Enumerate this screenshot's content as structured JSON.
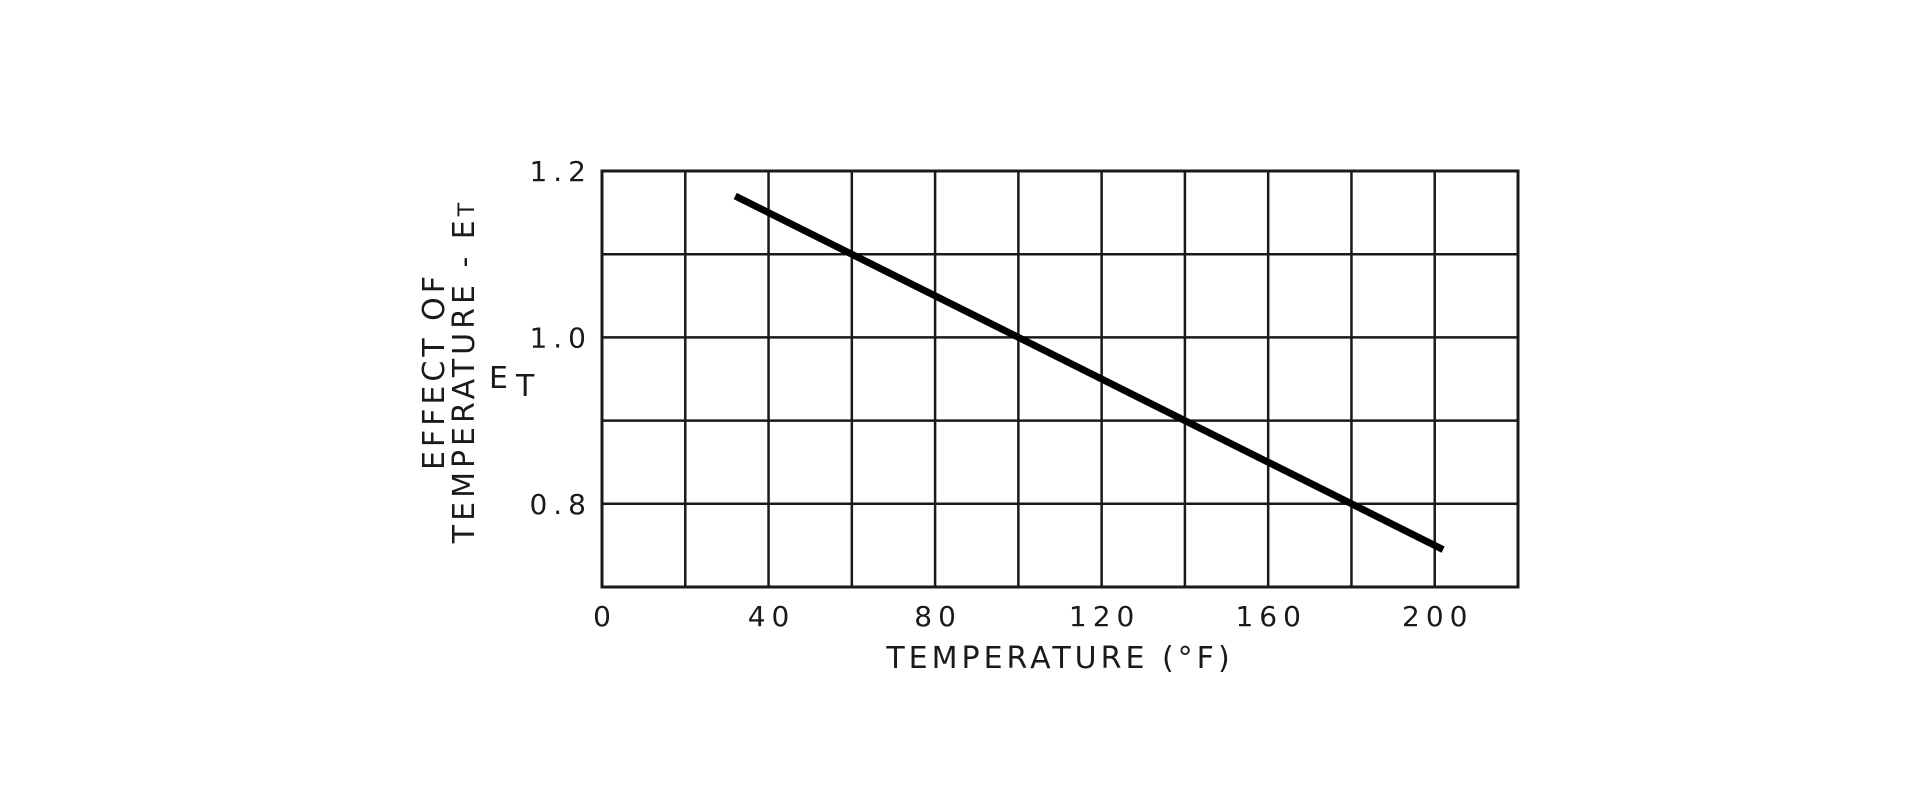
{
  "chart_data": {
    "type": "line",
    "title": "",
    "xlabel": "TEMPERATURE (°F)",
    "ylabel_line1": "EFFECT OF",
    "ylabel_line2": "TEMPERATURE - E",
    "ylabel_sub": "T",
    "ylabel_symbol": "E",
    "ylabel_symbol_sub": "T",
    "xlim": [
      0,
      220
    ],
    "ylim": [
      0.7,
      1.2
    ],
    "x_ticks": [
      {
        "value": 0,
        "label": "0"
      },
      {
        "value": 40,
        "label": "40"
      },
      {
        "value": 80,
        "label": "80"
      },
      {
        "value": 120,
        "label": "120"
      },
      {
        "value": 160,
        "label": "160"
      },
      {
        "value": 200,
        "label": "200"
      }
    ],
    "y_ticks": [
      {
        "value": 1.2,
        "label": "1.2"
      },
      {
        "value": 1.0,
        "label": "1.0"
      },
      {
        "value": 0.8,
        "label": "0.8"
      }
    ],
    "x_grid_step": 20,
    "y_grid_step": 0.1,
    "grid": true,
    "legend": null,
    "series": [
      {
        "name": "E_T",
        "x": [
          32,
          60,
          100,
          140,
          160,
          180,
          202
        ],
        "y": [
          1.17,
          1.1,
          1.0,
          0.9,
          0.85,
          0.8,
          0.745
        ]
      }
    ]
  },
  "colors": {
    "line": "#000000",
    "grid": "#1a1a1a",
    "background": "#ffffff"
  }
}
